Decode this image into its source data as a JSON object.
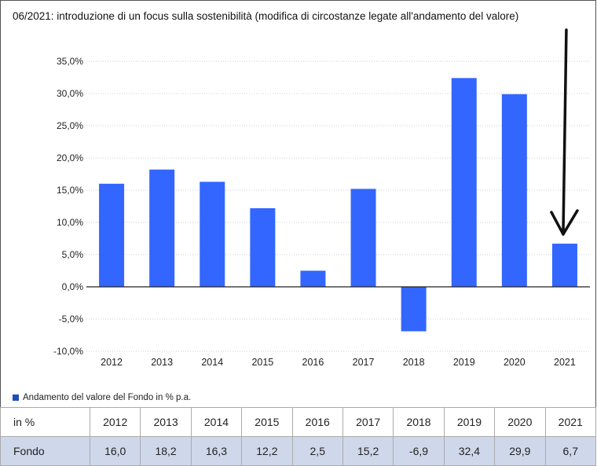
{
  "note": "06/2021: introduzione di un focus sulla sostenibilità (modifica di circostanze legate all'andamento del valore)",
  "colors": {
    "bar": "#3366ff",
    "legend_swatch": "#1f4fbf",
    "row_bg": "#cfd8ea",
    "arrow": "#111111"
  },
  "annotation_arrow": {
    "target_category": "2021"
  },
  "chart_data": {
    "type": "bar",
    "categories": [
      "2012",
      "2013",
      "2014",
      "2015",
      "2016",
      "2017",
      "2018",
      "2019",
      "2020",
      "2021"
    ],
    "series": [
      {
        "name": "Andamento del valore del Fondo in % p.a.",
        "values": [
          16.0,
          18.2,
          16.3,
          12.2,
          2.5,
          15.2,
          -6.9,
          32.4,
          29.9,
          6.7
        ]
      }
    ],
    "y_ticks": [
      "35,0%",
      "30,0%",
      "25,0%",
      "20,0%",
      "15,0%",
      "10,0%",
      "5,0%",
      "0,0%",
      "-5,0%",
      "-10,0%"
    ],
    "ylim": [
      -10,
      35
    ],
    "grid": true,
    "legend_position": "bottom-left"
  },
  "table": {
    "header_label": "in %",
    "row_label": "Fondo",
    "years": [
      "2012",
      "2013",
      "2014",
      "2015",
      "2016",
      "2017",
      "2018",
      "2019",
      "2020",
      "2021"
    ],
    "values": [
      "16,0",
      "18,2",
      "16,3",
      "12,2",
      "2,5",
      "15,2",
      "-6,9",
      "32,4",
      "29,9",
      "6,7"
    ]
  }
}
